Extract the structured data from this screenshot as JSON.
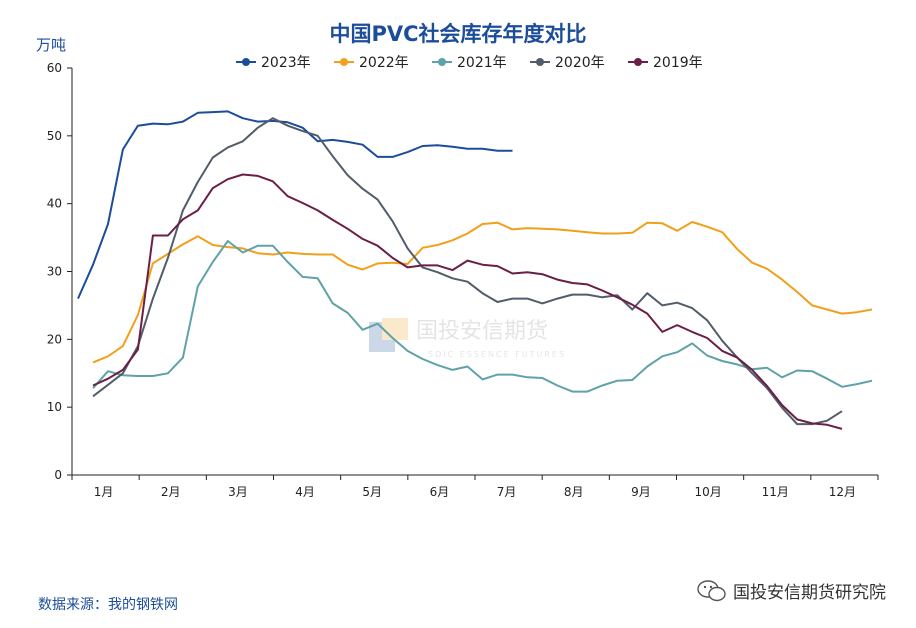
{
  "chart_data": {
    "type": "line",
    "title": "中国PVC社会库存年度对比",
    "ylabel": "万吨",
    "ylim": [
      0,
      60
    ],
    "yticks": [
      0,
      10,
      20,
      30,
      40,
      50,
      60
    ],
    "xlim": [
      0,
      53
    ],
    "month_labels": [
      "1月",
      "2月",
      "3月",
      "4月",
      "5月",
      "6月",
      "7月",
      "8月",
      "9月",
      "10月",
      "11月",
      "12月"
    ],
    "legend_position": "top-center",
    "grid": false,
    "series": [
      {
        "name": "2023年",
        "color": "#1c4d9a",
        "x_start": 0,
        "values": [
          26.0,
          31.0,
          37.0,
          48.0,
          51.5,
          51.8,
          51.7,
          52.1,
          53.4,
          53.5,
          53.6,
          52.6,
          52.1,
          52.2,
          52.0,
          51.2,
          49.2,
          49.4,
          49.1,
          48.7,
          46.9,
          46.9,
          47.6,
          48.5,
          48.6,
          48.4,
          48.1,
          48.1,
          47.8,
          47.8
        ]
      },
      {
        "name": "2022年",
        "color": "#f0a01c",
        "x_start": 1,
        "values": [
          16.6,
          17.5,
          19.0,
          23.6,
          31.2,
          32.6,
          34.0,
          35.2,
          33.9,
          33.6,
          33.4,
          32.7,
          32.5,
          32.8,
          32.6,
          32.5,
          32.5,
          31.0,
          30.3,
          31.2,
          31.3,
          31.1,
          33.5,
          33.9,
          34.6,
          35.6,
          37.0,
          37.2,
          36.2,
          36.4,
          36.3,
          36.2,
          36.0,
          35.8,
          35.6,
          35.6,
          35.7,
          37.2,
          37.1,
          36.0,
          37.3,
          36.6,
          35.8,
          33.3,
          31.3,
          30.4,
          28.8,
          27.0,
          25.0,
          24.4,
          23.8,
          24.0,
          24.4
        ]
      },
      {
        "name": "2021年",
        "color": "#5fa2a8",
        "x_start": 1,
        "values": [
          12.8,
          15.3,
          14.7,
          14.6,
          14.6,
          15.0,
          17.3,
          27.8,
          31.4,
          34.5,
          32.8,
          33.8,
          33.8,
          31.4,
          29.2,
          29.0,
          25.3,
          23.9,
          21.4,
          22.3,
          20.2,
          18.3,
          17.1,
          16.2,
          15.5,
          16.0,
          14.1,
          14.8,
          14.8,
          14.4,
          14.3,
          13.2,
          12.3,
          12.3,
          13.2,
          13.9,
          14.0,
          16.0,
          17.5,
          18.1,
          19.4,
          17.6,
          16.8,
          16.3,
          15.6,
          15.8,
          14.4,
          15.4,
          15.3,
          14.2,
          13.0,
          13.4,
          13.9
        ]
      },
      {
        "name": "2020年",
        "color": "#525c6a",
        "x_start": 1,
        "values": [
          11.6,
          13.3,
          15.0,
          19.0,
          26.0,
          32.0,
          39.0,
          43.2,
          46.8,
          48.3,
          49.2,
          51.2,
          52.6,
          51.5,
          50.7,
          50.0,
          47.0,
          44.2,
          42.2,
          40.6,
          37.4,
          33.4,
          30.6,
          29.9,
          29.0,
          28.5,
          26.8,
          25.5,
          26.0,
          26.0,
          25.3,
          26.0,
          26.6,
          26.6,
          26.2,
          26.5,
          24.4,
          26.8,
          25.0,
          25.4,
          24.6,
          22.8,
          19.8,
          17.3,
          15.0,
          12.8,
          9.9,
          7.5,
          7.5,
          8.0,
          9.4
        ]
      },
      {
        "name": "2019年",
        "color": "#6a1f47",
        "x_start": 1,
        "values": [
          13.2,
          14.2,
          15.5,
          18.5,
          35.3,
          35.3,
          37.7,
          39.0,
          42.3,
          43.6,
          44.3,
          44.1,
          43.3,
          41.1,
          40.1,
          39.0,
          37.6,
          36.3,
          34.8,
          33.8,
          32.0,
          30.6,
          30.9,
          30.9,
          30.2,
          31.6,
          31.0,
          30.8,
          29.7,
          29.9,
          29.6,
          28.8,
          28.3,
          28.1,
          27.2,
          26.2,
          25.1,
          23.8,
          21.1,
          22.1,
          21.1,
          20.2,
          18.3,
          17.3,
          15.5,
          13.1,
          10.3,
          8.2,
          7.6,
          7.4,
          6.8
        ]
      }
    ]
  },
  "header": {
    "title": "中国PVC社会库存年度对比",
    "unit": "万吨"
  },
  "footer": {
    "source": "数据来源：我的钢铁网",
    "brand": "国投安信期货研究院"
  },
  "watermark": {
    "cn": "国投安信期货",
    "en": "SDIC ESSENCE FUTURES"
  }
}
